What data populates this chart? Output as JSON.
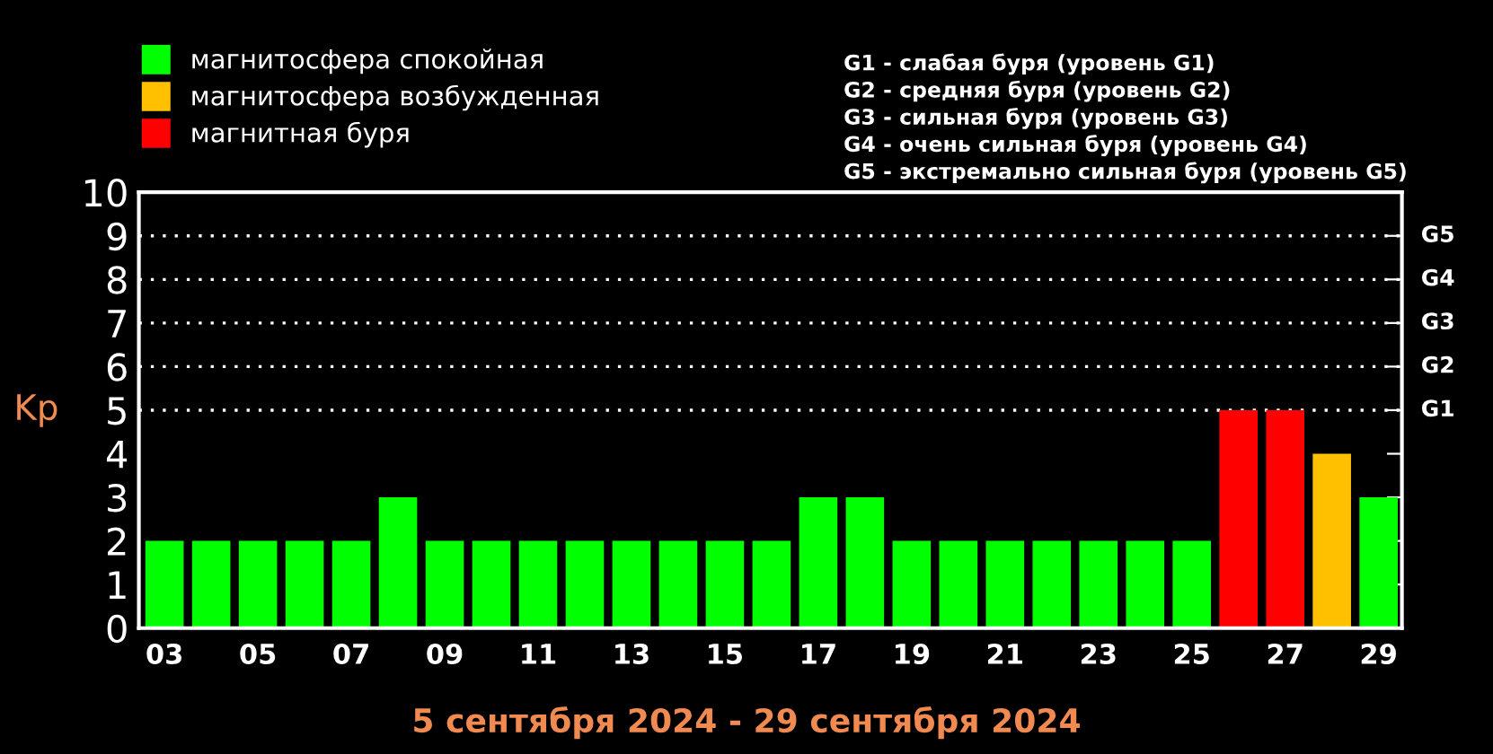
{
  "chart_data": {
    "type": "bar",
    "title": "5 сентября 2024 - 29 сентября 2024",
    "ylabel": "Kp",
    "categories": [
      "03",
      null,
      "05",
      null,
      "07",
      null,
      "09",
      null,
      "11",
      null,
      "13",
      null,
      "15",
      null,
      "17",
      null,
      "19",
      null,
      "21",
      null,
      "23",
      null,
      "25",
      null,
      "27",
      null,
      "29"
    ],
    "series": [
      {
        "name": "магнитосфера спокойная",
        "color": "#00ff00",
        "values": [
          2,
          2,
          2,
          2,
          2,
          3,
          2,
          2,
          2,
          2,
          2,
          2,
          2,
          2,
          3,
          3,
          2,
          2,
          2,
          2,
          2,
          2,
          2,
          null,
          null,
          null,
          3
        ]
      },
      {
        "name": "магнитосфера возбужденная",
        "color": "#ffc000",
        "values": [
          null,
          null,
          null,
          null,
          null,
          null,
          null,
          null,
          null,
          null,
          null,
          null,
          null,
          null,
          null,
          null,
          null,
          null,
          null,
          null,
          null,
          null,
          null,
          null,
          null,
          4,
          null
        ]
      },
      {
        "name": "магнитная буря",
        "color": "#ff0000",
        "values": [
          null,
          null,
          null,
          null,
          null,
          null,
          null,
          null,
          null,
          null,
          null,
          null,
          null,
          null,
          null,
          null,
          null,
          null,
          null,
          null,
          null,
          null,
          null,
          5,
          5,
          null,
          null
        ]
      }
    ],
    "ylim": [
      0,
      10
    ],
    "yticks": [
      0,
      1,
      2,
      3,
      4,
      5,
      6,
      7,
      8,
      9,
      10
    ],
    "ref_lines": [
      {
        "axis": "y",
        "value": 5,
        "label": "G1",
        "color": "#ffffff",
        "line_style": "dotted"
      },
      {
        "axis": "y",
        "value": 6,
        "label": "G2",
        "color": "#ffffff",
        "line_style": "dotted"
      },
      {
        "axis": "y",
        "value": 7,
        "label": "G3",
        "color": "#ffffff",
        "line_style": "dotted"
      },
      {
        "axis": "y",
        "value": 8,
        "label": "G4",
        "color": "#ffffff",
        "line_style": "dotted"
      },
      {
        "axis": "y",
        "value": 9,
        "label": "G5",
        "color": "#ffffff",
        "line_style": "dotted"
      }
    ],
    "annotations": [
      "G1 - слабая буря (уровень G1)",
      "G2 - средняя буря (уровень G2)",
      "G3 - сильная буря (уровень G3)",
      "G4 - очень сильная буря (уровень G4)",
      "G5 - экстремально сильная буря (уровень G5)"
    ],
    "legend": "top left",
    "grid": false
  }
}
